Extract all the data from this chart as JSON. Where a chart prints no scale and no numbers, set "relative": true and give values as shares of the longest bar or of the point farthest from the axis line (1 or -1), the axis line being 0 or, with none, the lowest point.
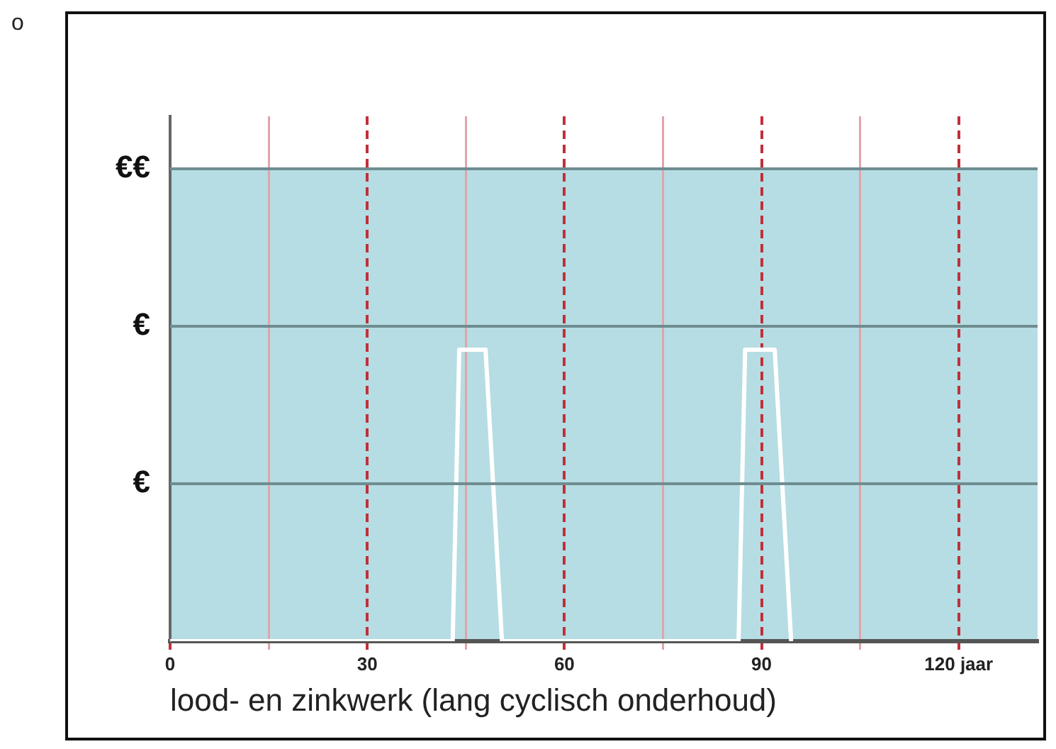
{
  "chart_data": {
    "type": "line",
    "xlabel": "lood- en zinkwerk (lang cyclisch onderhoud)",
    "annotations": [
      "o"
    ],
    "xlim": [
      0,
      132
    ],
    "relative": true,
    "xticks": [
      0,
      {
        "value": 15,
        "label": null
      },
      30,
      {
        "value": 45,
        "label": null
      },
      60,
      {
        "value": 75,
        "label": null
      },
      90,
      {
        "value": 105,
        "label": null
      },
      {
        "value": 120,
        "label": "120 jaar"
      }
    ],
    "grid": "x",
    "legend": false,
    "marker": "none",
    "line_style": "solid",
    "bands": [
      {
        "axis": "y",
        "from": 0,
        "to": 1.62,
        "color": "#b5dde3"
      }
    ],
    "ref_lines": [
      {
        "axis": "y",
        "value": 0.54,
        "label": "€",
        "color": "#6f8c90"
      },
      {
        "axis": "y",
        "value": 1.08,
        "label": "€",
        "color": "#6f8c90"
      },
      {
        "axis": "y",
        "value": 1.62,
        "label": "€€",
        "color": "#6f8c90"
      }
    ],
    "series": [
      {
        "color": "#ffffff",
        "x": [
          0,
          43,
          44,
          48,
          50.5,
          86.5,
          87.5,
          92,
          94.5
        ],
        "values": [
          0,
          0,
          1,
          1,
          0,
          0,
          1,
          1,
          0
        ]
      }
    ]
  }
}
